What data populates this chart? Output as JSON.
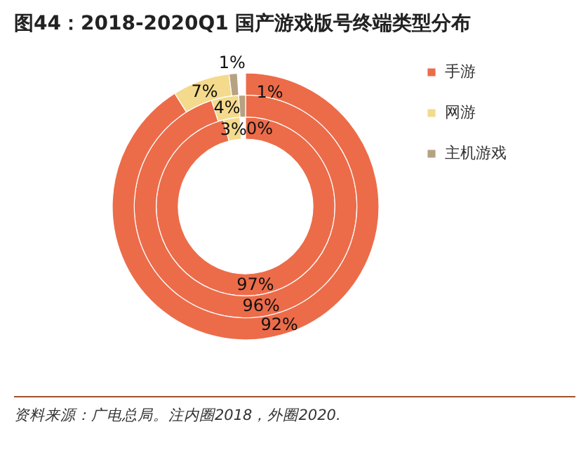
{
  "chart_data": {
    "type": "donut",
    "title": "图44：2018-2020Q1 国产游戏版号终端类型分布",
    "categories": [
      "手游",
      "网游",
      "主机游戏"
    ],
    "colors": [
      "#ec6c4a",
      "#f4da8c",
      "#b6a283"
    ],
    "series": [
      {
        "values": [
          97,
          3,
          0
        ],
        "value_labels": [
          "97%",
          "3%",
          "0%"
        ]
      },
      {
        "values": [
          96,
          4,
          1
        ],
        "value_labels": [
          "96%",
          "4%",
          "1%"
        ]
      },
      {
        "values": [
          92,
          7,
          1
        ],
        "value_labels": [
          "92%",
          "7%",
          "1%"
        ]
      }
    ],
    "legend": "right",
    "annotations": [
      "资料来源：广电总局。注内圈2018，外圈2020."
    ]
  }
}
